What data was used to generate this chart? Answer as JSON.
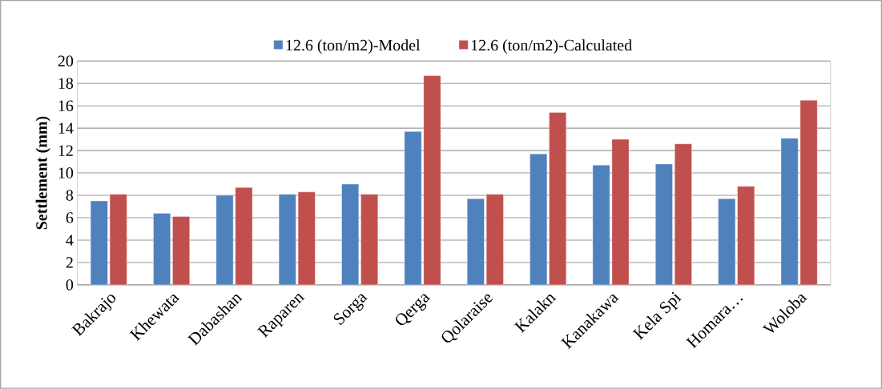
{
  "chart_data": {
    "type": "bar",
    "ylabel": "Settlement (mm)",
    "categories": [
      "Bakrajo",
      "Khewata",
      "Dabashan",
      "Raparen",
      "Sorga",
      "Qerga",
      "Qolaraise",
      "Kalakn",
      "Kanakawa",
      "Kela Spi",
      "Homara…",
      "Woloba"
    ],
    "series": [
      {
        "name": "12.6 (ton/m2)-Model",
        "color": "#4f81bd",
        "values": [
          7.5,
          6.4,
          8.0,
          8.1,
          9.0,
          13.7,
          7.7,
          11.7,
          10.7,
          10.8,
          7.7,
          13.1
        ]
      },
      {
        "name": "12.6 (ton/m2)-Calculated",
        "color": "#c0504d",
        "values": [
          8.1,
          6.1,
          8.7,
          8.3,
          8.1,
          18.7,
          8.1,
          15.4,
          13.0,
          12.6,
          8.8,
          16.5
        ]
      }
    ],
    "ylim": [
      0,
      20
    ],
    "yticks": [
      0,
      2,
      4,
      6,
      8,
      10,
      12,
      14,
      16,
      18,
      20
    ],
    "grid": "y",
    "legend": "top"
  }
}
